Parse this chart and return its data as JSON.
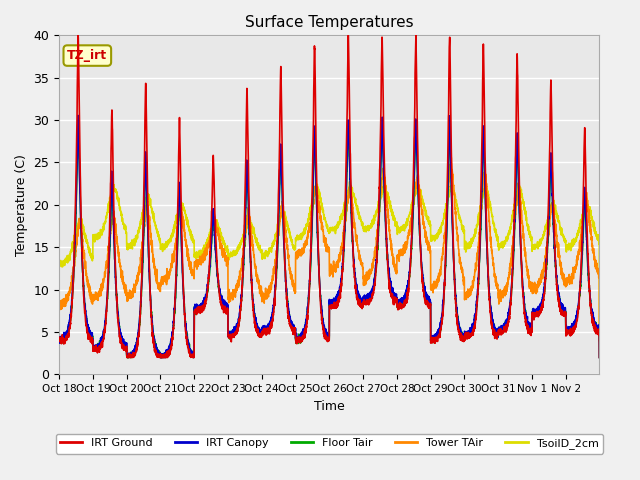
{
  "title": "Surface Temperatures",
  "xlabel": "Time",
  "ylabel": "Temperature (C)",
  "ylim": [
    0,
    40
  ],
  "n_days": 16,
  "background_color": "#e8e8e8",
  "figure_color": "#f0f0f0",
  "grid_color": "#ffffff",
  "series": {
    "IRT Ground": {
      "color": "#dd0000",
      "lw": 1.2
    },
    "IRT Canopy": {
      "color": "#0000cc",
      "lw": 1.2
    },
    "Floor Tair": {
      "color": "#00aa00",
      "lw": 1.2
    },
    "Tower TAir": {
      "color": "#ff8800",
      "lw": 1.2
    },
    "TsoilD_2cm": {
      "color": "#dddd00",
      "lw": 1.2
    }
  },
  "tick_labels": [
    "Oct 18",
    "Oct 19",
    "Oct 20",
    "Oct 21",
    "Oct 22",
    "Oct 23",
    "Oct 24",
    "Oct 25",
    "Oct 26",
    "Oct 27",
    "Oct 28",
    "Oct 29",
    "Oct 30",
    "Oct 31",
    "Nov 1",
    "Nov 2"
  ],
  "annotation_text": "TZ_irt",
  "annotation_color": "#cc0000",
  "annotation_bg": "#ffffcc",
  "annotation_border": "#999900"
}
